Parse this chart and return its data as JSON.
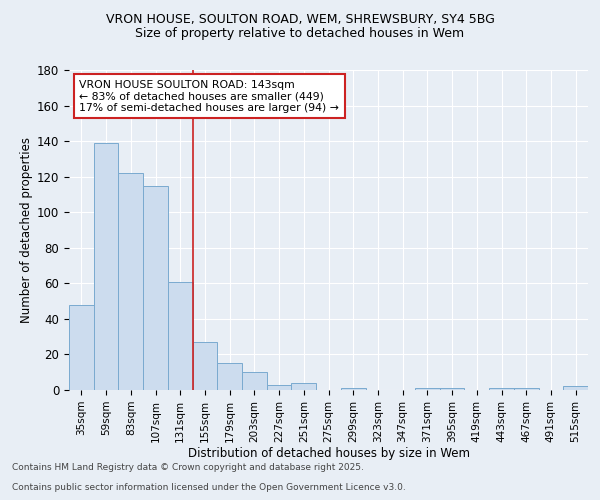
{
  "title1": "VRON HOUSE, SOULTON ROAD, WEM, SHREWSBURY, SY4 5BG",
  "title2": "Size of property relative to detached houses in Wem",
  "xlabel": "Distribution of detached houses by size in Wem",
  "ylabel": "Number of detached properties",
  "categories": [
    "35sqm",
    "59sqm",
    "83sqm",
    "107sqm",
    "131sqm",
    "155sqm",
    "179sqm",
    "203sqm",
    "227sqm",
    "251sqm",
    "275sqm",
    "299sqm",
    "323sqm",
    "347sqm",
    "371sqm",
    "395sqm",
    "419sqm",
    "443sqm",
    "467sqm",
    "491sqm",
    "515sqm"
  ],
  "values": [
    48,
    139,
    122,
    115,
    61,
    27,
    15,
    10,
    3,
    4,
    0,
    1,
    0,
    0,
    1,
    1,
    0,
    1,
    1,
    0,
    2
  ],
  "bar_color": "#ccdcee",
  "bar_edge_color": "#7aaacf",
  "vline_x": 4.5,
  "vline_color": "#cc2222",
  "annotation_title": "VRON HOUSE SOULTON ROAD: 143sqm",
  "annotation_line1": "← 83% of detached houses are smaller (449)",
  "annotation_line2": "17% of semi-detached houses are larger (94) →",
  "footer1": "Contains HM Land Registry data © Crown copyright and database right 2025.",
  "footer2": "Contains public sector information licensed under the Open Government Licence v3.0.",
  "ylim": [
    0,
    180
  ],
  "yticks": [
    0,
    20,
    40,
    60,
    80,
    100,
    120,
    140,
    160,
    180
  ],
  "bg_color": "#e8eef5",
  "plot_bg_color": "#e8eef5",
  "grid_color": "#ffffff",
  "annotation_box_color": "#ffffff",
  "annotation_border_color": "#cc2222",
  "title1_fontsize": 9,
  "title2_fontsize": 9
}
